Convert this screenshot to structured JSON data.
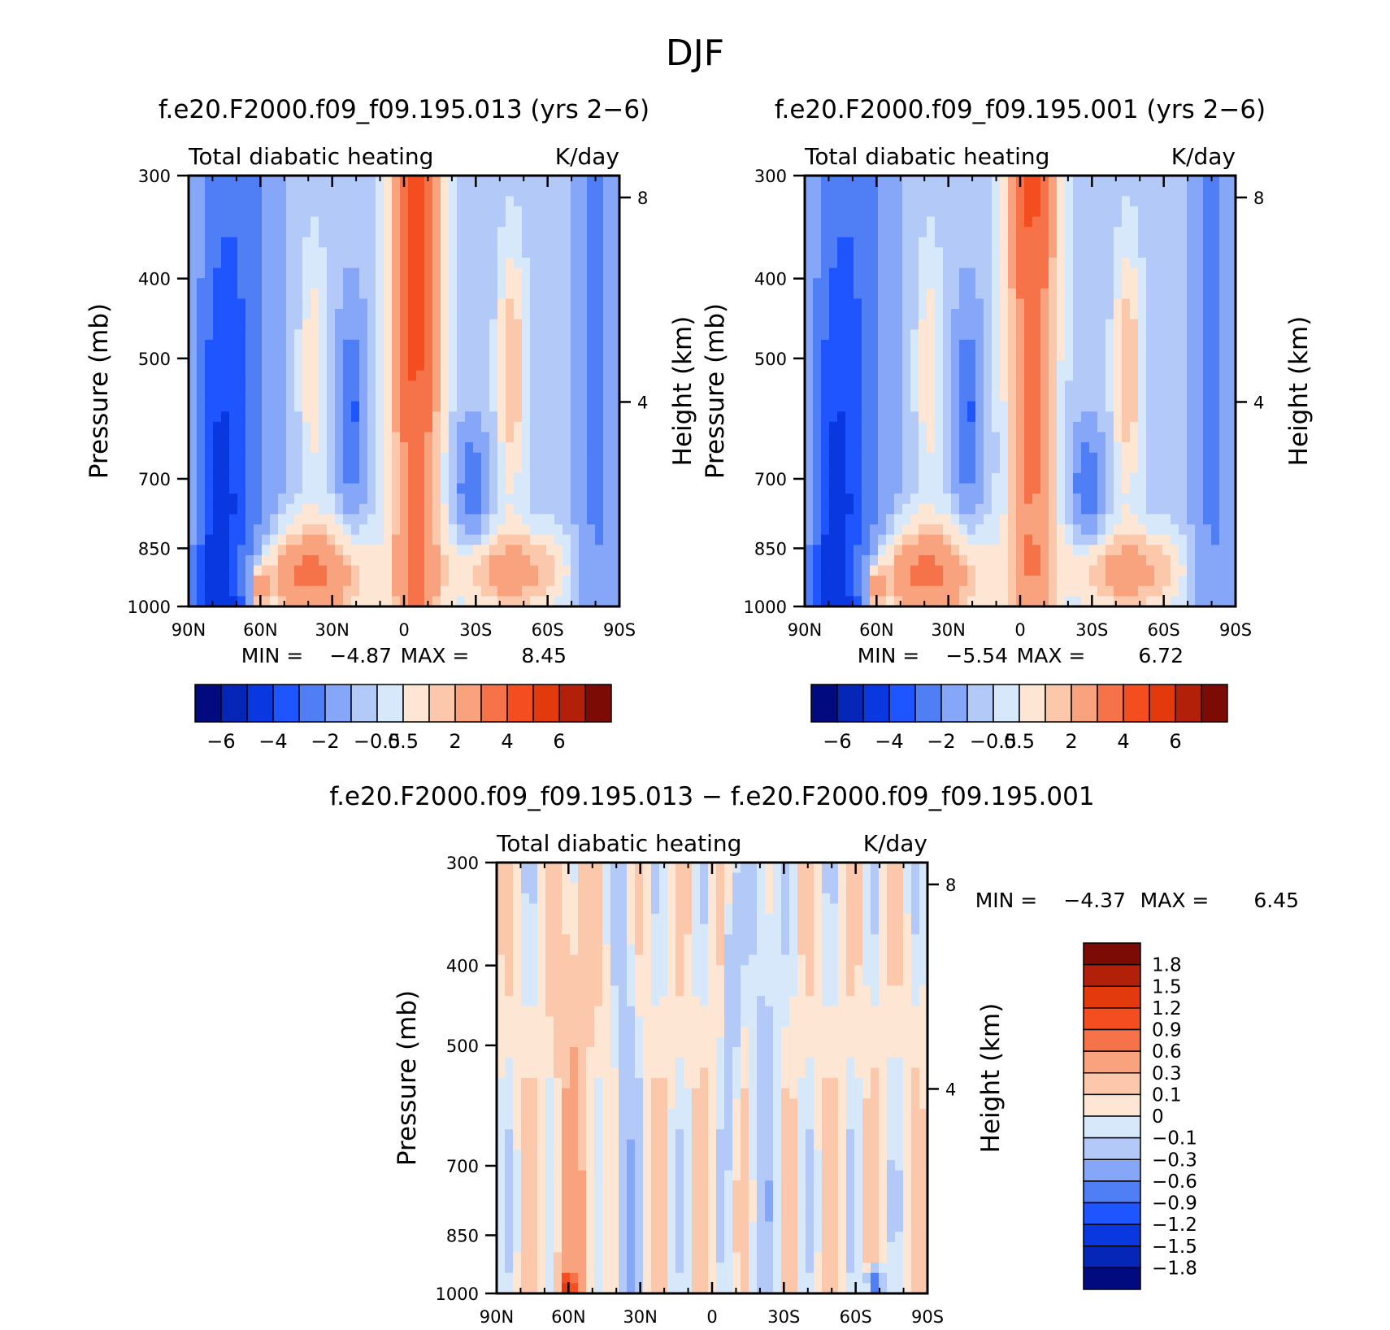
{
  "figure": {
    "title": "DJF"
  },
  "chart_data": [
    {
      "type": "heatmap",
      "title": "f.e20.F2000.f09_f09.195.013 (yrs 2-6)",
      "subtitle_left": "Total diabatic heating",
      "subtitle_right": "K/day",
      "ylabel": "Pressure (mb)",
      "ylabel_right": "Height (km)",
      "x_ticks": [
        "90N",
        "60N",
        "30N",
        "0",
        "30S",
        "60S",
        "90S"
      ],
      "xlim": [
        90,
        -90
      ],
      "y_ticks": [
        "300",
        "400",
        "500",
        "700",
        "850",
        "1000"
      ],
      "ylim": [
        1000,
        300
      ],
      "y_scale": "log",
      "y_right_ticks": [
        "8",
        "4"
      ],
      "min_label": "MIN =",
      "min_value": "-4.87",
      "max_label": "MAX =",
      "max_value": "8.45",
      "colorbar": {
        "orientation": "horizontal",
        "labels": [
          "-6",
          "-4",
          "-2",
          "-0.5",
          "0.5",
          "2",
          "4",
          "6"
        ],
        "colors": [
          "#020a7f",
          "#0626b8",
          "#0a38e0",
          "#1f55ff",
          "#4f7ef5",
          "#86a6f7",
          "#b3caf9",
          "#d7e8fb",
          "#fde6d3",
          "#fbc8ac",
          "#f9a37e",
          "#f6734a",
          "#f34d20",
          "#e23a0c",
          "#b32009",
          "#7d0b05"
        ]
      }
    },
    {
      "type": "heatmap",
      "title": "f.e20.F2000.f09_f09.195.001 (yrs 2-6)",
      "subtitle_left": "Total diabatic heating",
      "subtitle_right": "K/day",
      "ylabel": "Pressure (mb)",
      "ylabel_right": "Height (km)",
      "x_ticks": [
        "90N",
        "60N",
        "30N",
        "0",
        "30S",
        "60S",
        "90S"
      ],
      "xlim": [
        90,
        -90
      ],
      "y_ticks": [
        "300",
        "400",
        "500",
        "700",
        "850",
        "1000"
      ],
      "ylim": [
        1000,
        300
      ],
      "y_scale": "log",
      "y_right_ticks": [
        "8",
        "4"
      ],
      "min_label": "MIN =",
      "min_value": "-5.54",
      "max_label": "MAX =",
      "max_value": "6.72",
      "colorbar": {
        "orientation": "horizontal",
        "labels": [
          "-6",
          "-4",
          "-2",
          "-0.5",
          "0.5",
          "2",
          "4",
          "6"
        ],
        "colors": [
          "#020a7f",
          "#0626b8",
          "#0a38e0",
          "#1f55ff",
          "#4f7ef5",
          "#86a6f7",
          "#b3caf9",
          "#d7e8fb",
          "#fde6d3",
          "#fbc8ac",
          "#f9a37e",
          "#f6734a",
          "#f34d20",
          "#e23a0c",
          "#b32009",
          "#7d0b05"
        ]
      }
    },
    {
      "type": "heatmap",
      "title": "f.e20.F2000.f09_f09.195.013 - f.e20.F2000.f09_f09.195.001",
      "subtitle_left": "Total diabatic heating",
      "subtitle_right": "K/day",
      "ylabel": "Pressure (mb)",
      "ylabel_right": "Height (km)",
      "x_ticks": [
        "90N",
        "60N",
        "30N",
        "0",
        "30S",
        "60S",
        "90S"
      ],
      "xlim": [
        90,
        -90
      ],
      "y_ticks": [
        "300",
        "400",
        "500",
        "700",
        "850",
        "1000"
      ],
      "ylim": [
        1000,
        300
      ],
      "y_scale": "log",
      "y_right_ticks": [
        "8",
        "4"
      ],
      "min_label": "MIN =",
      "min_value": "-4.37",
      "max_label": "MAX =",
      "max_value": "6.45",
      "colorbar": {
        "orientation": "vertical",
        "labels": [
          "1.8",
          "1.5",
          "1.2",
          "0.9",
          "0.6",
          "0.3",
          "0.1",
          "0",
          "-0.1",
          "-0.3",
          "-0.6",
          "-0.9",
          "-1.2",
          "-1.5",
          "-1.8"
        ],
        "colors": [
          "#7d0b05",
          "#b32009",
          "#e23a0c",
          "#f34d20",
          "#f6734a",
          "#f9a37e",
          "#fbc8ac",
          "#fde6d3",
          "#d7e8fb",
          "#b3caf9",
          "#86a6f7",
          "#4f7ef5",
          "#1f55ff",
          "#0a38e0",
          "#0626b8",
          "#020a7f"
        ]
      }
    }
  ]
}
